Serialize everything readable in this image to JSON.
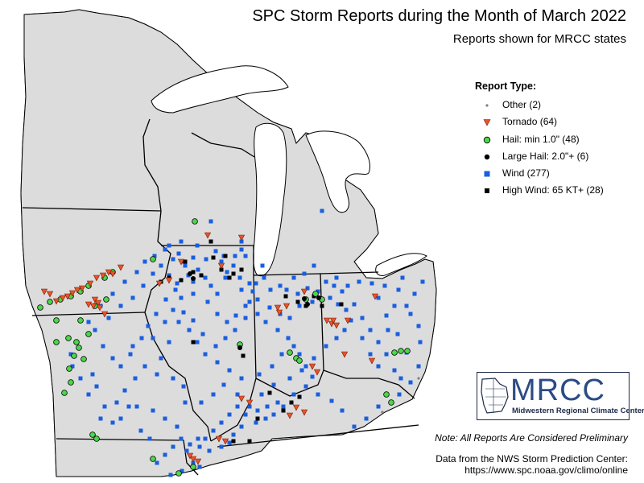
{
  "title": "SPC Storm Reports during the Month of March 2022",
  "subtitle": "Reports shown for MRCC states",
  "legend": {
    "title": "Report Type:",
    "items": [
      {
        "label": "Other (2)",
        "symbol": "small-dot",
        "color": "#808080"
      },
      {
        "label": "Tornado (64)",
        "symbol": "triangle-down",
        "color": "#e8542c"
      },
      {
        "label": "Hail: min 1.0\" (48)",
        "symbol": "circle",
        "color": "#4cd64c"
      },
      {
        "label": "Large Hail: 2.0\"+ (6)",
        "symbol": "circle",
        "color": "#000000"
      },
      {
        "label": "Wind (277)",
        "symbol": "square",
        "color": "#1a5ee0"
      },
      {
        "label": "High Wind: 65 KT+ (28)",
        "symbol": "square",
        "color": "#000000"
      }
    ]
  },
  "logo": {
    "name": "MRCC",
    "subtitle": "Midwestern Regional Climate Center"
  },
  "note": "Note: All Reports Are Considered Preliminary",
  "credit_line1": "Data from the NWS Storm Prediction Center:",
  "credit_line2": "https://www.spc.noaa.gov/climo/online",
  "colors": {
    "land": "#dcdcdc",
    "water": "#ffffff",
    "county_lines": "#8a8a8a",
    "state_lines": "#000000",
    "tornado": "#e8542c",
    "hail": "#4cd64c",
    "wind": "#1a5ee0"
  }
}
